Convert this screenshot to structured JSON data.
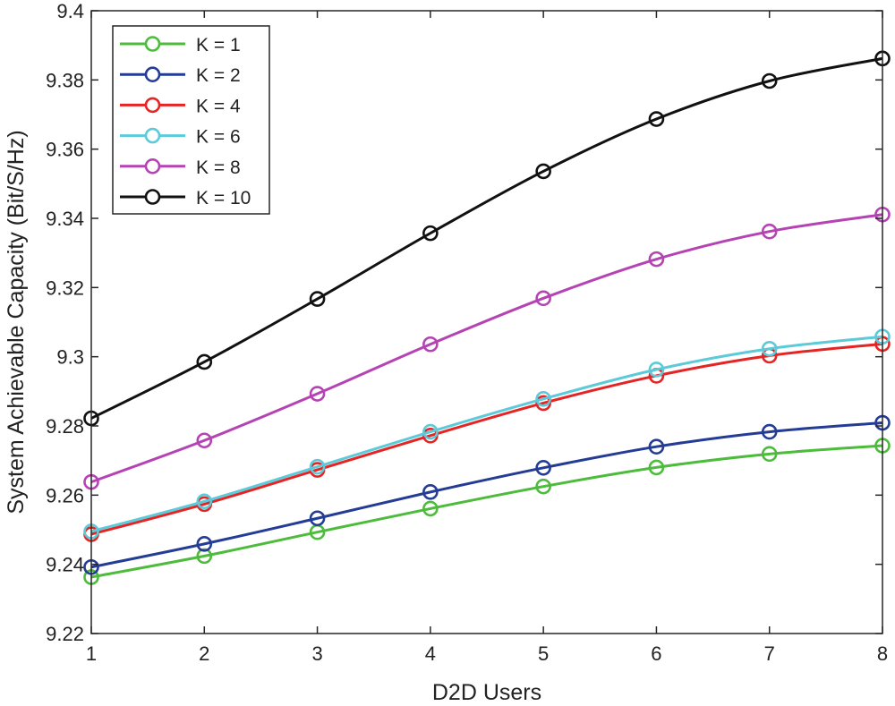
{
  "chart_data": {
    "type": "line",
    "title": "",
    "xlabel": "D2D Users",
    "ylabel": "System Achievable Capacity (Bit/S/Hz)",
    "x": [
      1,
      2,
      3,
      4,
      5,
      6,
      7,
      8
    ],
    "xlim": [
      1,
      8
    ],
    "ylim": [
      9.22,
      9.4
    ],
    "x_ticks": [
      "1",
      "2",
      "3",
      "4",
      "5",
      "6",
      "7",
      "8"
    ],
    "y_ticks": [
      "9.22",
      "9.24",
      "9.26",
      "9.28",
      "9.3",
      "9.32",
      "9.34",
      "9.36",
      "9.38",
      "9.4"
    ],
    "grid": false,
    "legend_position": "top-left",
    "marker": "circle",
    "series": [
      {
        "name": "K = 1",
        "color": "#4dbb3b",
        "values": [
          9.2363,
          9.2424,
          9.2493,
          9.2561,
          9.2625,
          9.268,
          9.2719,
          9.2743
        ]
      },
      {
        "name": "K = 2",
        "color": "#243c95",
        "values": [
          9.2392,
          9.2459,
          9.2533,
          9.2609,
          9.2679,
          9.274,
          9.2783,
          9.2809
        ]
      },
      {
        "name": "K = 4",
        "color": "#e52424",
        "values": [
          9.2487,
          9.2574,
          9.2673,
          9.2772,
          9.2866,
          9.2945,
          9.3003,
          9.3037
        ]
      },
      {
        "name": "K = 6",
        "color": "#5ccad8",
        "values": [
          9.2495,
          9.2582,
          9.2682,
          9.2783,
          9.2878,
          9.2963,
          9.3023,
          9.3058
        ]
      },
      {
        "name": "K = 8",
        "color": "#b543b3",
        "values": [
          9.2638,
          9.2758,
          9.2893,
          9.3036,
          9.3169,
          9.3282,
          9.3362,
          9.3411
        ]
      },
      {
        "name": "K = 10",
        "color": "#111111",
        "values": [
          9.2822,
          9.2985,
          9.3167,
          9.3357,
          9.3536,
          9.3687,
          9.3797,
          9.3862
        ]
      }
    ]
  }
}
